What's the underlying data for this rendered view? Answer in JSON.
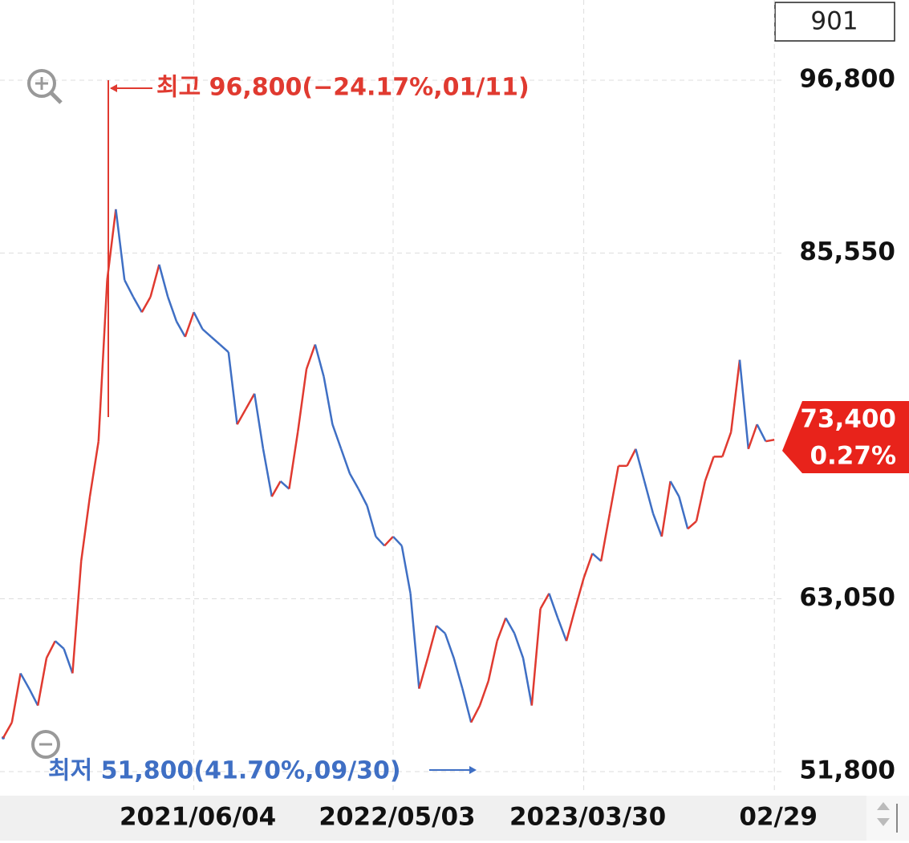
{
  "chart_data": {
    "type": "line",
    "counter": "901",
    "categories": [
      null,
      null,
      null,
      null,
      null,
      null,
      null,
      null,
      null,
      null,
      null,
      null,
      null,
      null,
      null,
      null,
      null,
      null,
      null,
      null,
      null,
      null,
      "2021/06/04",
      null,
      null,
      null,
      null,
      null,
      null,
      null,
      null,
      null,
      null,
      null,
      null,
      null,
      null,
      null,
      null,
      null,
      null,
      null,
      null,
      null,
      null,
      "2022/05/03",
      null,
      null,
      null,
      null,
      null,
      null,
      null,
      null,
      null,
      null,
      null,
      null,
      null,
      null,
      null,
      null,
      null,
      null,
      null,
      null,
      null,
      "2023/03/30",
      null,
      null,
      null,
      null,
      null,
      null,
      null,
      null,
      null,
      null,
      null,
      null,
      null,
      null,
      null,
      null,
      null,
      null,
      null,
      null,
      null,
      "02/29"
    ],
    "values": [
      54000,
      55000,
      58200,
      57200,
      56100,
      59200,
      60300,
      59800,
      58200,
      65500,
      69700,
      73300,
      83800,
      88400,
      83800,
      82700,
      81700,
      82700,
      84800,
      82700,
      81100,
      80100,
      81700,
      80600,
      80100,
      79600,
      79100,
      74400,
      75400,
      76400,
      72800,
      69700,
      70700,
      70200,
      73900,
      78000,
      79600,
      77500,
      74400,
      72800,
      71200,
      70200,
      69100,
      67100,
      66500,
      67100,
      66500,
      63400,
      57200,
      59200,
      61300,
      60800,
      59200,
      57200,
      55000,
      56100,
      57700,
      60300,
      61800,
      60800,
      59200,
      56100,
      62400,
      63400,
      61800,
      60300,
      62400,
      64400,
      66000,
      65500,
      68600,
      71700,
      71700,
      72800,
      70700,
      68600,
      67100,
      70700,
      69700,
      67600,
      68100,
      70700,
      72300,
      72300,
      73900,
      78600,
      72800,
      74400,
      73300,
      73400
    ],
    "up_color": "#e03a30",
    "down_color": "#3f6fc4",
    "ylim": [
      50340,
      102020
    ],
    "yticks": [
      {
        "value": 51800,
        "label": "51,800"
      },
      {
        "value": 63050,
        "label": "63,050"
      },
      {
        "value": 85550,
        "label": "85,550"
      },
      {
        "value": 96800,
        "label": "96,800"
      }
    ],
    "grid": true,
    "annotations": {
      "high": "최고 96,800(−24.17%,01/11)",
      "low": "최저 51,800(41.70%,09/30)"
    },
    "last_price": "73,400",
    "last_change": "0.27%"
  }
}
